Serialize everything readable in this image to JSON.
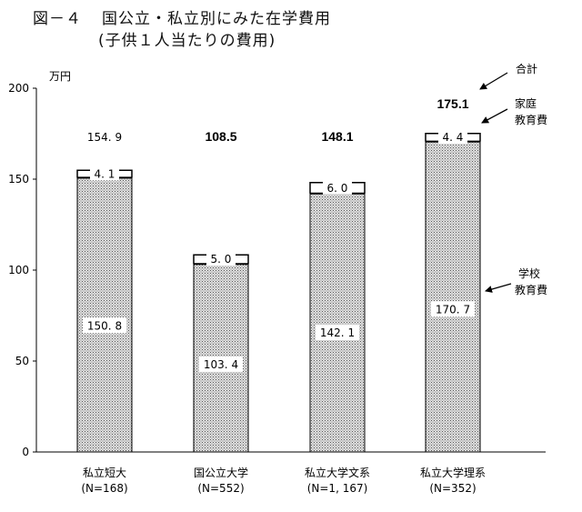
{
  "header": {
    "figure_no": "図－４",
    "title": "国公立・私立別にみた在学費用",
    "subtitle": "(子供１人当たりの費用)"
  },
  "chart_data": {
    "type": "bar",
    "stacked": true,
    "ylabel": "万円",
    "ylim": [
      0,
      200
    ],
    "yticks": [
      0,
      50,
      100,
      150,
      200
    ],
    "ytick_labels": [
      "0",
      "50",
      "100",
      "150",
      "200"
    ],
    "categories": [
      {
        "name": "私立短大",
        "n": "(N=168)"
      },
      {
        "name": "国公立大学",
        "n": "(N=552)"
      },
      {
        "name": "私立大学文系",
        "n": "(N=1, 167)"
      },
      {
        "name": "私立大学理系",
        "n": "(N=352)"
      }
    ],
    "series": [
      {
        "name": "学校\n教育費",
        "values": [
          150.8,
          103.4,
          142.1,
          170.7
        ],
        "labels": [
          "150. 8",
          "103. 4",
          "142. 1",
          "170. 7"
        ]
      },
      {
        "name": "家庭\n教育費",
        "values": [
          4.1,
          5.0,
          6.0,
          4.4
        ],
        "labels": [
          "4. 1",
          "5. 0",
          "6. 0",
          "4. 4"
        ]
      }
    ],
    "totals": [
      154.9,
      108.5,
      148.1,
      175.1
    ],
    "total_labels": [
      "154. 9",
      "108.5",
      "148.1",
      "175.1"
    ],
    "total_label_bold": [
      false,
      true,
      true,
      true
    ],
    "annotations": {
      "total": "合計",
      "household_line1": "家庭",
      "household_line2": "教育費",
      "school_line1": "学校",
      "school_line2": "教育費"
    },
    "colors": {
      "school_fill": "#c8c8c8",
      "household_fill": "#ffffff",
      "axis": "#000000"
    }
  }
}
